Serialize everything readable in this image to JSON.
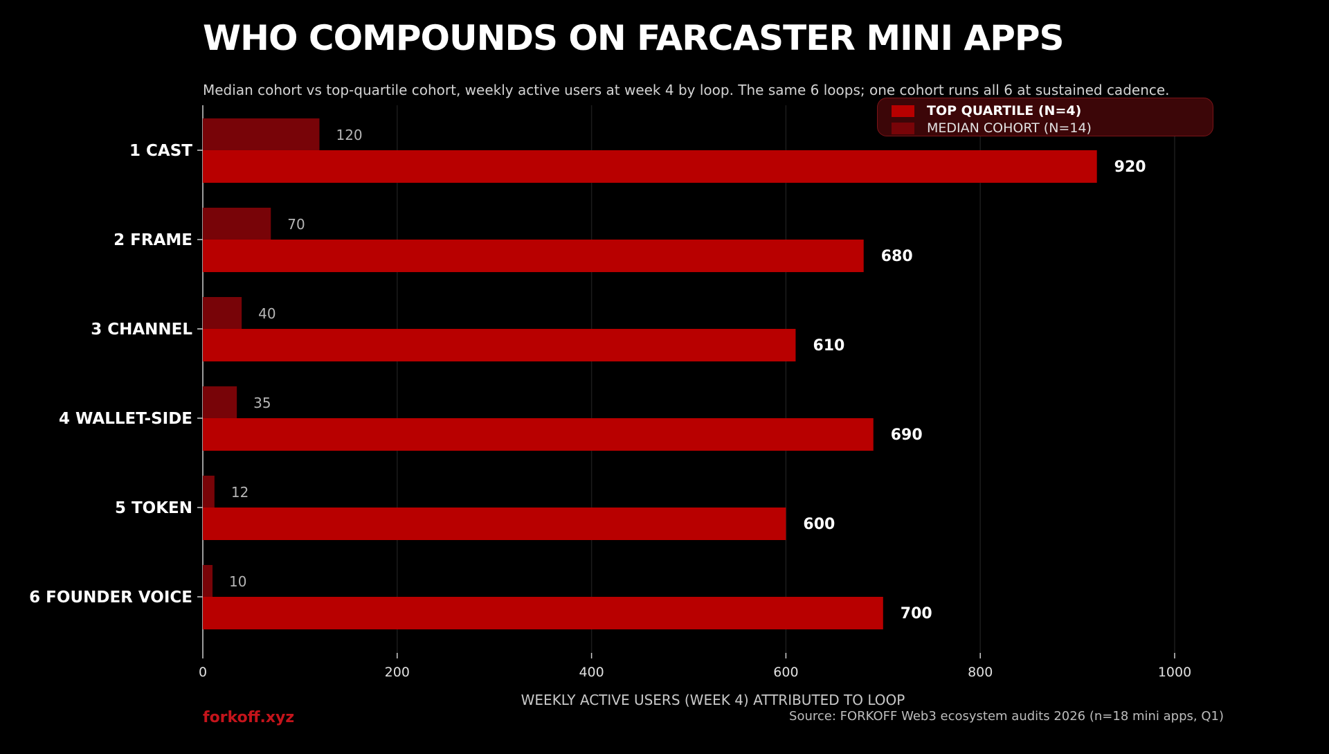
{
  "header": {
    "title": "WHO COMPOUNDS ON FARCASTER MINI APPS",
    "subtitle": "Median cohort vs top-quartile cohort, weekly active users at week 4 by loop. The same 6 loops; one cohort runs all 6 at sustained cadence."
  },
  "footer": {
    "brand": "forkoff.xyz",
    "source": "Source: FORKOFF Web3 ecosystem audits 2026 (n=18 mini apps, Q1)"
  },
  "chart_data": {
    "type": "bar",
    "orientation": "horizontal",
    "title": "WHO COMPOUNDS ON FARCASTER MINI APPS",
    "subtitle": "Median cohort vs top-quartile cohort, weekly active users at week 4 by loop. The same 6 loops; one cohort runs all 6 at sustained cadence.",
    "xlabel": "WEEKLY ACTIVE USERS (WEEK 4) ATTRIBUTED TO LOOP",
    "ylabel": "",
    "categories": [
      "1 CAST",
      "2 FRAME",
      "3 CHANNEL",
      "4 WALLET-SIDE",
      "5 TOKEN",
      "6 FOUNDER VOICE"
    ],
    "series": [
      {
        "name": "TOP QUARTILE (N=4)",
        "values": [
          920,
          680,
          610,
          690,
          600,
          700
        ],
        "color": "#b80000"
      },
      {
        "name": "MEDIAN COHORT (N=14)",
        "values": [
          120,
          70,
          40,
          35,
          12,
          10
        ],
        "color": "#780408"
      }
    ],
    "xlim": [
      0,
      1000
    ],
    "xticks": [
      0,
      200,
      400,
      600,
      800,
      1000
    ],
    "grid": true,
    "legend": "top-right",
    "colors": {
      "background": "#000000",
      "grid": "#1c1c1c",
      "accent": "#c4141b"
    }
  }
}
